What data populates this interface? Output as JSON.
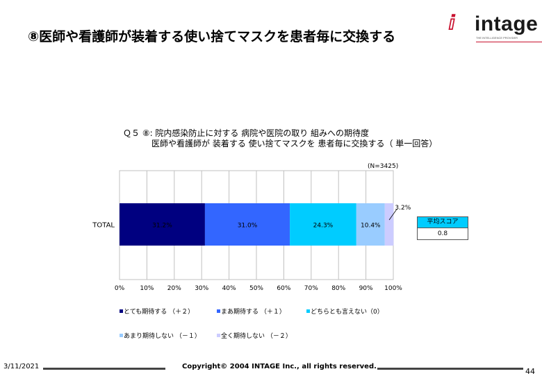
{
  "slide": {
    "title": "⑧医師や看護師が装着する使い捨てマスクを患者毎に交換する",
    "logo_text": "intage",
    "logo_mark": "ⅈ",
    "logo_sub": "THE INTELLIGENCE PROVIDER"
  },
  "question": {
    "line1": "Ｑ５ ⑧:  院内感染防止に対する 病院や医院の取り 組みへの期待度",
    "line2": "医師や看護師が 装着する 使い捨てマスクを 患者毎に交換する（ 単一回答）",
    "n": "(N=3425)"
  },
  "score": {
    "label": "平均スコア",
    "value": "0.8"
  },
  "footer": {
    "date": "3/11/2021",
    "copyright": "Copyright© 2004 INTAGE Inc., all rights reserved.",
    "page": "44"
  },
  "chart_data": {
    "type": "bar",
    "orientation": "horizontal",
    "stacked": true,
    "categories": [
      "TOTAL"
    ],
    "series": [
      {
        "name": "とても期待する （＋２）",
        "values": [
          31.2
        ],
        "label": "31.2%",
        "color": "#000080"
      },
      {
        "name": "まあ期待する （＋１）",
        "values": [
          31.0
        ],
        "label": "31.0%",
        "color": "#3366ff"
      },
      {
        "name": "どちらとも言えない（0）",
        "values": [
          24.3
        ],
        "label": "24.3%",
        "color": "#00ccff"
      },
      {
        "name": "あまり期待しない （－１）",
        "values": [
          10.4
        ],
        "label": "10.4%",
        "color": "#99ccff"
      },
      {
        "name": "全く期待しない （－２）",
        "values": [
          3.2
        ],
        "label": "3.2%",
        "color": "#ccccff"
      }
    ],
    "xlim": [
      0,
      100
    ],
    "xticks": [
      "0%",
      "10%",
      "20%",
      "30%",
      "40%",
      "50%",
      "60%",
      "70%",
      "80%",
      "90%",
      "100%"
    ],
    "grid": true
  }
}
